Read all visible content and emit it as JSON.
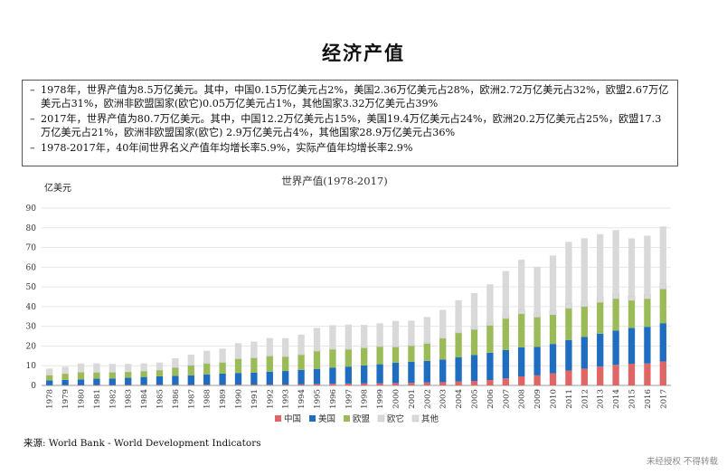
{
  "page": {
    "title": "经济产值",
    "summary": [
      "1978年，世界产值为8.5万亿美元。其中，中国0.15万亿美元占2%，美国2.36万亿美元占28%，欧洲2.72万亿美元占32%，欧盟2.67万亿美元占31%，欧洲非欧盟国家(欧它)0.05万亿美元占1%，其他国家3.32万亿美元占39%",
      "2017年，世界产值为80.7万亿美元。其中，中国12.2万亿美元占15%，美国19.4万亿美元占24%，欧洲20.2万亿美元占25%，欧盟17.3万亿美元占21%，欧洲非欧盟国家(欧它) 2.9万亿美元占4%，其他国家28.9万亿美元占36%",
      "1978-2017年，40年间世界名义产值年均增长率5.9%，实际产值年均增长率2.9%"
    ],
    "source": "来源:    World Bank -  World Development Indicators",
    "watermark": "未经授权 不得转载"
  },
  "chart_data": {
    "type": "bar",
    "stacked": true,
    "title": "世界产值(1978-2017)",
    "ylabel": "亿美元",
    "ylim": [
      0,
      90
    ],
    "yticks": [
      0,
      10,
      20,
      30,
      40,
      50,
      60,
      70,
      80,
      90
    ],
    "grid": true,
    "legend_position": "bottom",
    "categories": [
      "1978",
      "1979",
      "1980",
      "1981",
      "1982",
      "1983",
      "1984",
      "1985",
      "1986",
      "1987",
      "1988",
      "1989",
      "1990",
      "1991",
      "1992",
      "1993",
      "1994",
      "1995",
      "1996",
      "1997",
      "1998",
      "1999",
      "2000",
      "2001",
      "2002",
      "2003",
      "2004",
      "2005",
      "2006",
      "2007",
      "2008",
      "2009",
      "2010",
      "2011",
      "2012",
      "2013",
      "2014",
      "2015",
      "2016",
      "2017"
    ],
    "series": [
      {
        "name": "中国",
        "color": "#E06666",
        "values": [
          0.15,
          0.18,
          0.19,
          0.2,
          0.2,
          0.23,
          0.26,
          0.31,
          0.3,
          0.27,
          0.31,
          0.35,
          0.36,
          0.38,
          0.43,
          0.44,
          0.56,
          0.73,
          0.86,
          0.96,
          1.03,
          1.09,
          1.21,
          1.34,
          1.47,
          1.66,
          1.96,
          2.29,
          2.75,
          3.55,
          4.59,
          5.1,
          6.1,
          7.55,
          8.53,
          9.57,
          10.44,
          11.02,
          11.14,
          12.2
        ]
      },
      {
        "name": "美国",
        "color": "#1F6DC0",
        "values": [
          2.36,
          2.63,
          2.86,
          3.21,
          3.34,
          3.64,
          4.04,
          4.35,
          4.59,
          4.87,
          5.25,
          5.66,
          5.98,
          6.17,
          6.54,
          6.88,
          7.31,
          7.66,
          8.1,
          8.61,
          9.09,
          9.66,
          10.28,
          10.62,
          10.98,
          11.51,
          12.27,
          13.09,
          13.86,
          14.48,
          14.72,
          14.42,
          14.96,
          15.52,
          16.16,
          16.69,
          17.39,
          18.12,
          18.62,
          19.4
        ]
      },
      {
        "name": "欧盟",
        "color": "#9BBB59",
        "values": [
          2.67,
          3.15,
          3.6,
          3.2,
          3.1,
          3.0,
          2.9,
          3.0,
          4.1,
          5.0,
          5.5,
          5.6,
          7.1,
          7.3,
          7.9,
          7.2,
          7.6,
          9.0,
          9.3,
          8.7,
          8.9,
          8.9,
          8.0,
          8.1,
          8.8,
          10.7,
          12.4,
          13.0,
          13.8,
          15.9,
          17.0,
          15.1,
          14.8,
          16.0,
          15.3,
          15.9,
          16.2,
          14.0,
          14.2,
          17.3
        ]
      },
      {
        "name": "欧它",
        "color": "#D9D9D9",
        "values": [
          0.05,
          0.06,
          0.07,
          0.07,
          0.07,
          0.07,
          0.07,
          0.08,
          0.1,
          0.12,
          0.14,
          0.15,
          0.3,
          0.4,
          0.5,
          0.5,
          0.5,
          0.6,
          0.6,
          0.6,
          0.6,
          0.5,
          0.6,
          0.6,
          0.7,
          0.8,
          1.0,
          1.2,
          1.5,
          1.9,
          2.3,
          1.8,
          2.1,
          2.6,
          2.6,
          2.7,
          2.7,
          2.3,
          2.3,
          2.9
        ]
      },
      {
        "name": "其他",
        "color": "#D9D9D9",
        "values": [
          3.32,
          3.5,
          4.4,
          4.5,
          4.2,
          4.0,
          3.9,
          3.9,
          4.7,
          5.4,
          6.4,
          6.9,
          7.7,
          8.0,
          8.7,
          9.0,
          9.8,
          11.2,
          11.7,
          12.0,
          11.1,
          11.4,
          12.6,
          12.2,
          12.8,
          13.7,
          15.6,
          17.3,
          19.4,
          22.2,
          25.2,
          23.8,
          28.0,
          31.2,
          32.1,
          31.9,
          32.1,
          29.2,
          29.7,
          28.9
        ]
      }
    ]
  }
}
